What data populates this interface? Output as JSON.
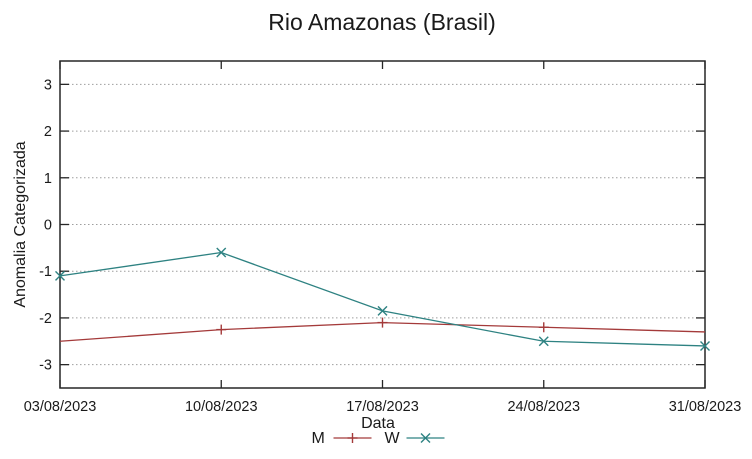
{
  "title": "Rio Amazonas (Brasil)",
  "chart_data": {
    "type": "line",
    "title": "Rio Amazonas (Brasil)",
    "xlabel": "Data",
    "ylabel": "Anomalia Categorizada",
    "categories": [
      "03/08/2023",
      "10/08/2023",
      "17/08/2023",
      "24/08/2023",
      "31/08/2023"
    ],
    "series": [
      {
        "name": "M",
        "color": "#a43a3a",
        "marker": "plus",
        "edge_markers": false,
        "values": [
          -2.5,
          -2.25,
          -2.1,
          -2.2,
          -2.3
        ]
      },
      {
        "name": "W",
        "color": "#2e8282",
        "marker": "x",
        "edge_markers": true,
        "values": [
          -1.1,
          -0.6,
          -1.85,
          -2.5,
          -2.6
        ]
      }
    ],
    "ylim": [
      -3.5,
      3.5
    ],
    "yticks": [
      3,
      2,
      1,
      0,
      -1,
      -2,
      -3
    ],
    "grid": "horizontal-dotted",
    "legend_position": "bottom-center",
    "background": "#ffffff",
    "axis_color": "#262626",
    "grid_color": "#9e9e9e",
    "text_color": "#1a1a1a"
  }
}
